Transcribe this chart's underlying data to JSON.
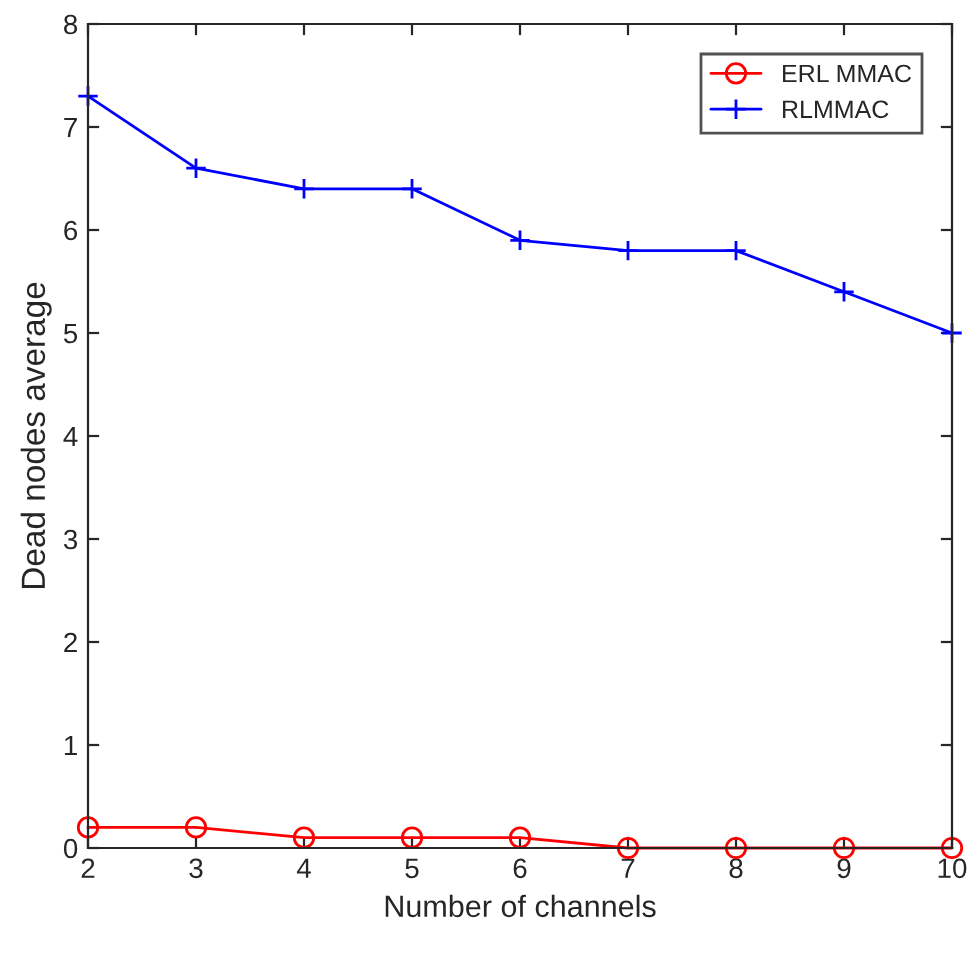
{
  "chart_data": {
    "type": "line",
    "xlabel": "Number of channels",
    "ylabel": "Dead nodes average",
    "x": [
      2,
      3,
      4,
      5,
      6,
      7,
      8,
      9,
      10
    ],
    "series": [
      {
        "name": "ERL MMAC",
        "color": "#ff0000",
        "values": [
          0.2,
          0.2,
          0.1,
          0.1,
          0.1,
          0,
          0,
          0,
          0
        ],
        "marker": "circle"
      },
      {
        "name": "RLMMAC",
        "color": "#0000ff",
        "values": [
          7.3,
          6.6,
          6.4,
          6.4,
          5.9,
          5.8,
          5.8,
          5.4,
          5.0
        ],
        "marker": "cross"
      }
    ],
    "xlim": [
      2,
      10
    ],
    "xticks": [
      2,
      3,
      4,
      5,
      6,
      7,
      8,
      9,
      10
    ],
    "ylim": [
      0,
      8
    ],
    "yticks": [
      0,
      1,
      2,
      3,
      4,
      5,
      6,
      7,
      8
    ],
    "grid": false,
    "legend": "top right",
    "line_style": "solid"
  }
}
